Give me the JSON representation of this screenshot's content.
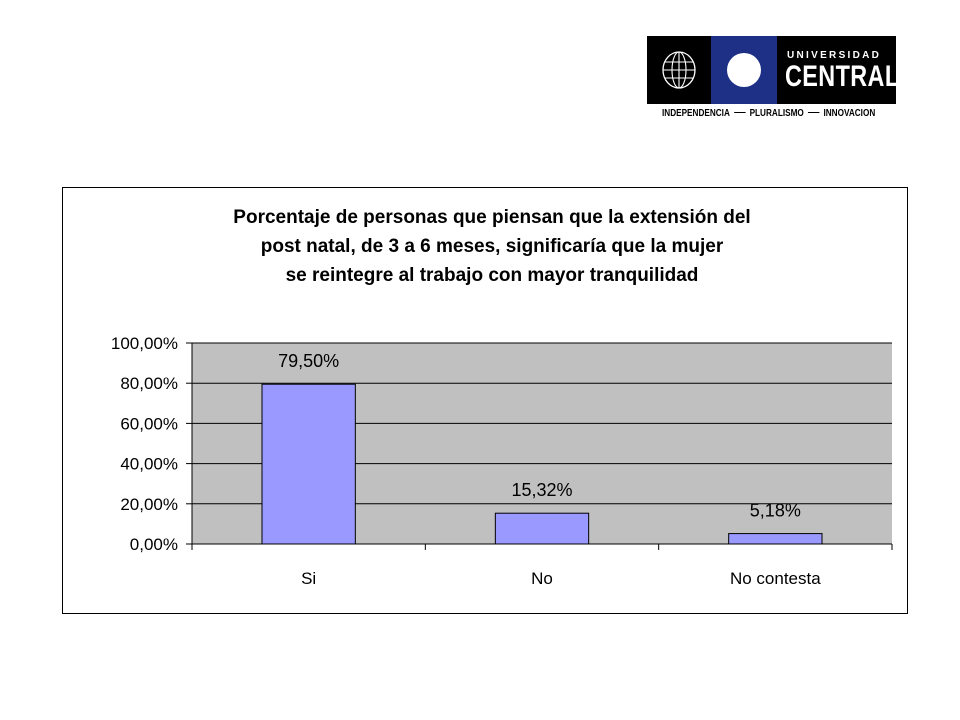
{
  "logo": {
    "line1": "UNIVERSIDAD",
    "line2": "CENTRAL",
    "motto": [
      "INDEPENDENCIA",
      "PLURALISMO",
      "INNOVACION"
    ]
  },
  "chart_data": {
    "type": "bar",
    "title_lines": [
      "Porcentaje de personas que piensan que la extensión del",
      "post natal, de 3 a 6 meses, significaría que la mujer",
      "se reintegre al trabajo con mayor tranquilidad"
    ],
    "categories": [
      "Si",
      "No",
      "No contesta"
    ],
    "values": [
      79.5,
      15.32,
      5.18
    ],
    "data_labels": [
      "79,50%",
      "15,32%",
      "5,18%"
    ],
    "ylim": [
      0,
      100
    ],
    "yticks": [
      0,
      20,
      40,
      60,
      80,
      100
    ],
    "ytick_labels": [
      "0,00%",
      "20,00%",
      "40,00%",
      "60,00%",
      "80,00%",
      "100,00%"
    ],
    "grid": true,
    "legend": "none",
    "bar_color": "#9999ff",
    "plot_background": "#c0c0c0"
  }
}
